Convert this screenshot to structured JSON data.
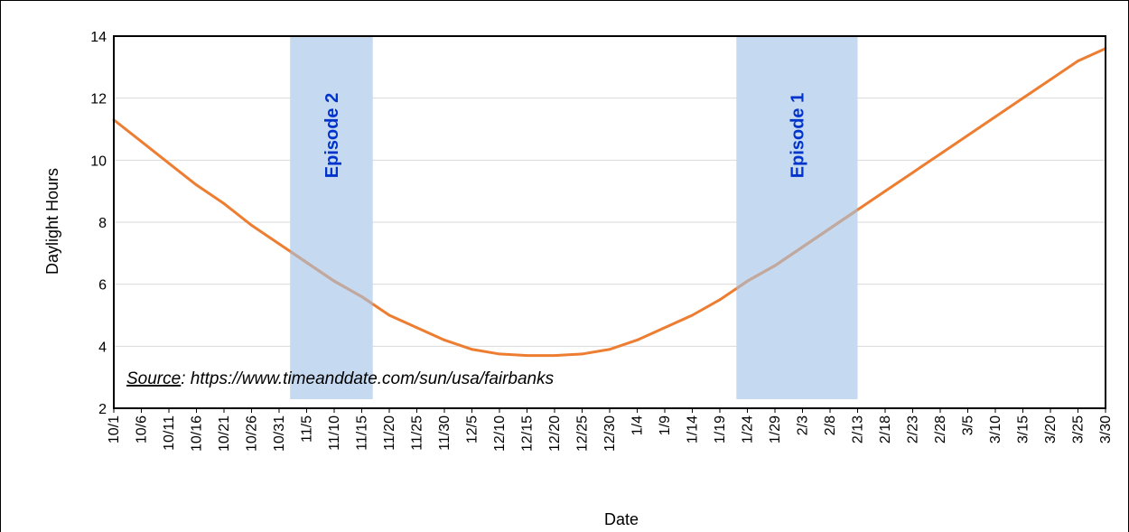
{
  "chart_data": {
    "type": "line",
    "title": "",
    "xlabel": "Date",
    "ylabel": "Daylight Hours",
    "ylim": [
      2,
      14
    ],
    "yticks": [
      2,
      4,
      6,
      8,
      10,
      12,
      14
    ],
    "grid": "horizontal",
    "legend": "none",
    "x_range": [
      "10/1",
      "3/31"
    ],
    "categories": [
      "10/1",
      "10/6",
      "10/11",
      "10/16",
      "10/21",
      "10/26",
      "10/31",
      "11/5",
      "11/10",
      "11/15",
      "11/20",
      "11/25",
      "11/30",
      "12/5",
      "12/10",
      "12/15",
      "12/20",
      "12/25",
      "12/30",
      "1/4",
      "1/9",
      "1/14",
      "1/19",
      "1/24",
      "1/29",
      "2/3",
      "2/8",
      "2/13",
      "2/18",
      "2/23",
      "2/28",
      "3/5",
      "3/10",
      "3/15",
      "3/20",
      "3/25",
      "3/30"
    ],
    "series": [
      {
        "color": "#ED7D31",
        "highlight_color": "#BFA9A0",
        "values": [
          11.3,
          10.6,
          9.9,
          9.2,
          8.6,
          7.9,
          7.3,
          6.7,
          6.1,
          5.6,
          5.0,
          4.6,
          4.2,
          3.9,
          3.75,
          3.7,
          3.7,
          3.75,
          3.9,
          4.2,
          4.6,
          5.0,
          5.5,
          6.1,
          6.6,
          7.2,
          7.8,
          8.4,
          9.0,
          9.6,
          10.2,
          10.8,
          11.4,
          12.0,
          12.6,
          13.2,
          13.6
        ]
      }
    ],
    "episodes": [
      {
        "label": "Episode 2",
        "start": "11/2",
        "end": "11/17",
        "color": "#C5D9F1",
        "text_color": "#0033CC"
      },
      {
        "label": "Episode 1",
        "start": "1/22",
        "end": "2/13",
        "color": "#C5D9F1",
        "text_color": "#0033CC"
      }
    ],
    "annotation": {
      "source_label": "Source",
      "source_text": ":  https://www.timeanddate.com/sun/usa/fairbanks"
    }
  }
}
